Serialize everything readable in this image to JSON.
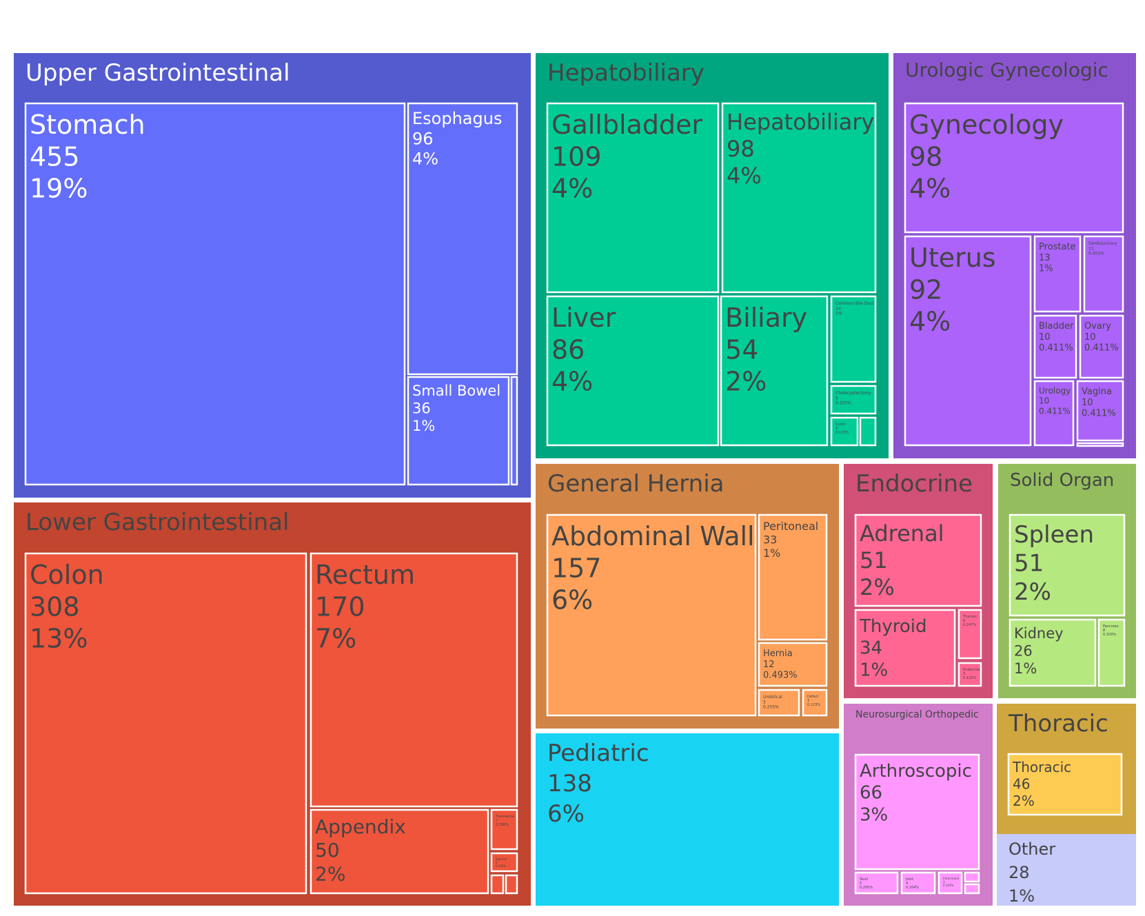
{
  "chart_data": {
    "type": "treemap",
    "title": "",
    "groups": [
      {
        "name": "Upper Gastrointestinal",
        "color": "#535bcf",
        "childColor": "#636efa",
        "titleColor": "#ffffff",
        "textColor": "#ffffff",
        "children": [
          {
            "name": "Stomach",
            "value": 455,
            "pct": "19%"
          },
          {
            "name": "Esophagus",
            "value": 96,
            "pct": "4%"
          },
          {
            "name": "Small Bowel",
            "value": 36,
            "pct": "1%"
          },
          {
            "name": "",
            "value": null,
            "pct": ""
          }
        ]
      },
      {
        "name": "Lower Gastrointestinal",
        "color": "#c1452f",
        "childColor": "#ef553b",
        "titleColor": "#444444",
        "textColor": "#444444",
        "children": [
          {
            "name": "Colon",
            "value": 308,
            "pct": "13%"
          },
          {
            "name": "Rectum",
            "value": 170,
            "pct": "7%"
          },
          {
            "name": "Appendix",
            "value": 50,
            "pct": "2%"
          },
          {
            "name": "Transverse",
            "value": 7,
            "pct": "0.288%"
          },
          {
            "name": "Sigmoid",
            "value": 5,
            "pct": "0.205%"
          },
          {
            "name": "",
            "value": null,
            "pct": ""
          },
          {
            "name": "",
            "value": null,
            "pct": ""
          }
        ]
      },
      {
        "name": "Hepatobiliary",
        "color": "#00a67f",
        "childColor": "#00cc96",
        "titleColor": "#444444",
        "textColor": "#444444",
        "children": [
          {
            "name": "Gallbladder",
            "value": 109,
            "pct": "4%"
          },
          {
            "name": "Hepatobiliary",
            "value": 98,
            "pct": "4%"
          },
          {
            "name": "Liver",
            "value": 86,
            "pct": "4%"
          },
          {
            "name": "Biliary",
            "value": 54,
            "pct": "2%"
          },
          {
            "name": "Common Bile Duct",
            "value": 14,
            "pct": "1%"
          },
          {
            "name": "Cholecystectomy",
            "value": 5,
            "pct": "0.205%"
          },
          {
            "name": "Cystic",
            "value": 3,
            "pct": "0.123%"
          },
          {
            "name": "",
            "value": null,
            "pct": ""
          }
        ]
      },
      {
        "name": "Urologic Gynecologic",
        "color": "#8b54cf",
        "childColor": "#ab63fa",
        "titleColor": "#444444",
        "textColor": "#444444",
        "children": [
          {
            "name": "Gynecology",
            "value": 98,
            "pct": "4%"
          },
          {
            "name": "Uterus",
            "value": 92,
            "pct": "4%"
          },
          {
            "name": "Prostate",
            "value": 13,
            "pct": "1%"
          },
          {
            "name": "Genitourinary",
            "value": 11,
            "pct": "0.452%"
          },
          {
            "name": "Bladder",
            "value": 10,
            "pct": "0.411%"
          },
          {
            "name": "Ovary",
            "value": 10,
            "pct": "0.411%"
          },
          {
            "name": "Urology",
            "value": 10,
            "pct": "0.411%"
          },
          {
            "name": "Vagina",
            "value": 10,
            "pct": "0.411%"
          },
          {
            "name": "",
            "value": null,
            "pct": ""
          }
        ]
      },
      {
        "name": "General Hernia",
        "color": "#d08446",
        "childColor": "#ffa15a",
        "titleColor": "#444444",
        "textColor": "#444444",
        "children": [
          {
            "name": "Abdominal Wall",
            "value": 157,
            "pct": "6%"
          },
          {
            "name": "Peritoneal",
            "value": 33,
            "pct": "1%"
          },
          {
            "name": "Hernia",
            "value": 12,
            "pct": "0.493%"
          },
          {
            "name": "Umbilical",
            "value": 5,
            "pct": "0.205%"
          },
          {
            "name": "Defect",
            "value": 3,
            "pct": "0.123%"
          }
        ]
      },
      {
        "name": "Pediatric",
        "value": 138,
        "pct": "6%",
        "color": "#19d3f3",
        "titleColor": "#444444",
        "textColor": "#444444",
        "children": []
      },
      {
        "name": "Endocrine",
        "color": "#d15075",
        "childColor": "#ff6692",
        "titleColor": "#444444",
        "textColor": "#444444",
        "children": [
          {
            "name": "Adrenal",
            "value": 51,
            "pct": "2%"
          },
          {
            "name": "Thyroid",
            "value": 34,
            "pct": "1%"
          },
          {
            "name": "Thymus",
            "value": 6,
            "pct": "0.247%"
          },
          {
            "name": "Endocrine",
            "value": 3,
            "pct": "0.123%"
          }
        ]
      },
      {
        "name": "Solid Organ",
        "color": "#94be5e",
        "childColor": "#b6e880",
        "titleColor": "#444444",
        "textColor": "#444444",
        "children": [
          {
            "name": "Spleen",
            "value": 51,
            "pct": "2%"
          },
          {
            "name": "Kidney",
            "value": 26,
            "pct": "1%"
          },
          {
            "name": "Pancreas",
            "value": 8,
            "pct": "0.329%"
          }
        ]
      },
      {
        "name": "Neurosurgical Orthopedic",
        "color": "#d17dca",
        "childColor": "#ff97ff",
        "titleColor": "#444444",
        "textColor": "#444444",
        "children": [
          {
            "name": "Arthroscopic",
            "value": 66,
            "pct": "3%"
          },
          {
            "name": "Skull",
            "value": 5,
            "pct": "0.205%"
          },
          {
            "name": "Joint",
            "value": 4,
            "pct": "0.164%"
          },
          {
            "name": "Intracranial",
            "value": 3,
            "pct": "0.123%"
          },
          {
            "name": "",
            "value": null,
            "pct": ""
          },
          {
            "name": "",
            "value": null,
            "pct": ""
          }
        ]
      },
      {
        "name": "Thoracic",
        "color": "#d0a63f",
        "childColor": "#fecb52",
        "titleColor": "#444444",
        "textColor": "#444444",
        "children": [
          {
            "name": "Thoracic",
            "value": 46,
            "pct": "2%"
          }
        ]
      },
      {
        "name": "Other",
        "value": 28,
        "pct": "1%",
        "color": "#c6cbfa",
        "titleColor": "#444444",
        "textColor": "#444444",
        "children": []
      }
    ]
  }
}
